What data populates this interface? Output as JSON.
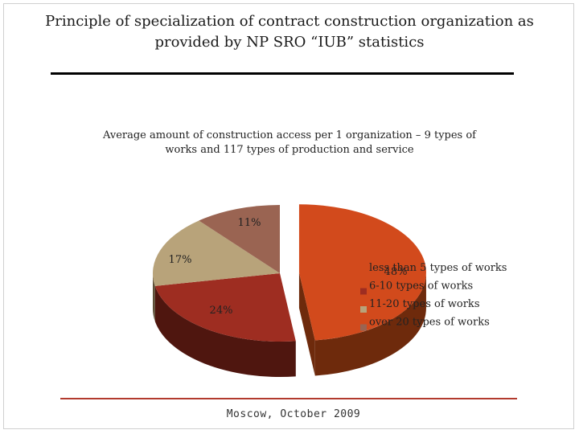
{
  "slide": {
    "title_line1": "Principle of specialization of contract construction organization as",
    "title_line2": "provided by NP SRO “IUB” statistics",
    "subtitle_line1": "Average amount of construction access per 1 organization – 9 types of",
    "subtitle_line2": "works and 117 types of production and service",
    "footer": "Moscow, October 2009"
  },
  "chart_data": {
    "type": "pie",
    "title": "",
    "legend_position": "right",
    "slices": [
      {
        "label": "less than 5 types of works",
        "value": 48,
        "value_label": "48%",
        "color": "#d24a1c",
        "side": "#6e2a0c"
      },
      {
        "label": "6-10 types of works",
        "value": 24,
        "value_label": "24%",
        "color": "#9e2d21",
        "side": "#4f160f"
      },
      {
        "label": "11-20 types of works",
        "value": 17,
        "value_label": "17%",
        "color": "#b8a37a",
        "side": "#5e5038"
      },
      {
        "label": "over 20 types of works",
        "value": 11,
        "value_label": "11%",
        "color": "#9a6452",
        "side": "#4d2f25"
      }
    ]
  }
}
